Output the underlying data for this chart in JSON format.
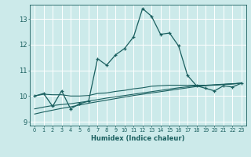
{
  "title": "",
  "xlabel": "Humidex (Indice chaleur)",
  "ylabel": "",
  "bg_color": "#cceaea",
  "grid_color": "#ffffff",
  "line_color": "#1a5f5f",
  "xlim": [
    -0.5,
    23.5
  ],
  "ylim": [
    8.85,
    13.55
  ],
  "yticks": [
    9,
    10,
    11,
    12,
    13
  ],
  "xticks": [
    0,
    1,
    2,
    3,
    4,
    5,
    6,
    7,
    8,
    9,
    10,
    11,
    12,
    13,
    14,
    15,
    16,
    17,
    18,
    19,
    20,
    21,
    22,
    23
  ],
  "series": [
    [
      10.0,
      10.1,
      9.6,
      10.2,
      9.5,
      9.7,
      9.8,
      11.45,
      11.2,
      11.6,
      11.85,
      12.3,
      13.4,
      13.1,
      12.4,
      12.45,
      11.95,
      10.8,
      10.4,
      10.3,
      10.2,
      10.4,
      10.35,
      10.5
    ],
    [
      10.0,
      10.07,
      10.05,
      10.05,
      10.0,
      10.0,
      10.02,
      10.1,
      10.12,
      10.18,
      10.22,
      10.28,
      10.32,
      10.38,
      10.4,
      10.42,
      10.42,
      10.42,
      10.42,
      10.42,
      10.42,
      10.45,
      10.47,
      10.5
    ],
    [
      9.5,
      9.57,
      9.63,
      9.67,
      9.7,
      9.75,
      9.8,
      9.86,
      9.92,
      9.97,
      10.02,
      10.07,
      10.12,
      10.17,
      10.22,
      10.27,
      10.32,
      10.36,
      10.4,
      10.42,
      10.44,
      10.46,
      10.48,
      10.5
    ],
    [
      9.3,
      9.38,
      9.45,
      9.52,
      9.58,
      9.65,
      9.72,
      9.78,
      9.84,
      9.9,
      9.96,
      10.02,
      10.07,
      10.12,
      10.17,
      10.22,
      10.27,
      10.32,
      10.37,
      10.4,
      10.43,
      10.45,
      10.47,
      10.5
    ]
  ]
}
